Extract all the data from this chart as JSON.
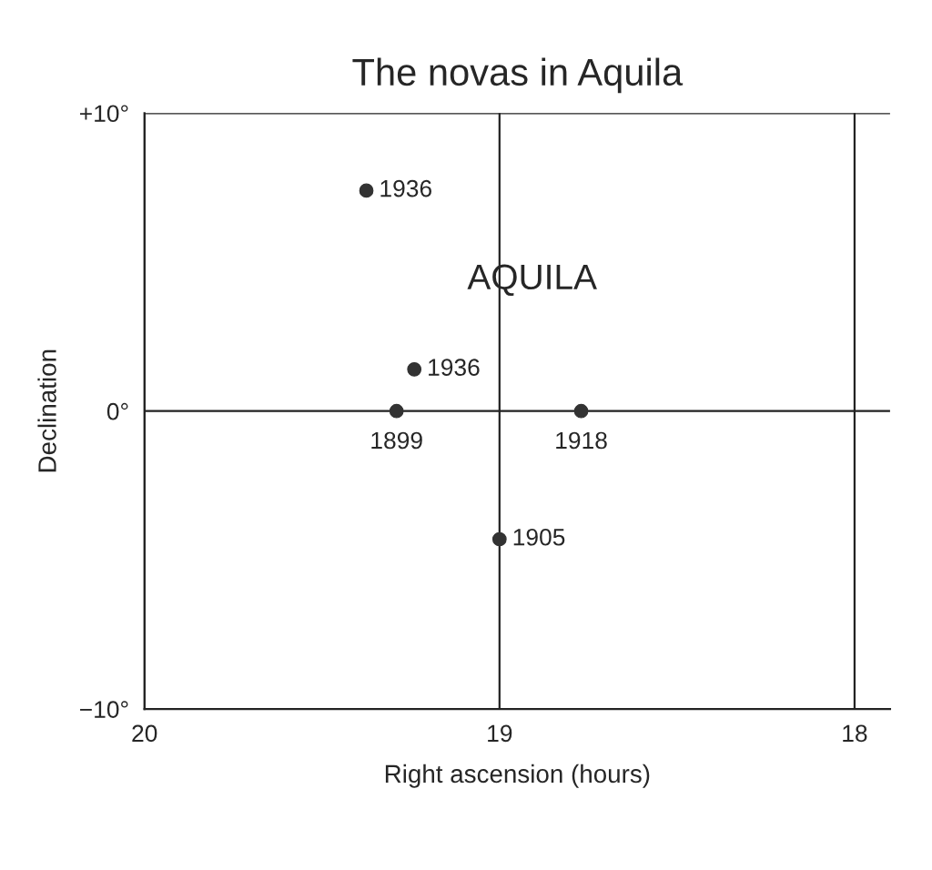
{
  "chart_data": {
    "type": "scatter",
    "title": "The novas in Aquila",
    "xlabel": "Right ascension (hours)",
    "ylabel": "Declination",
    "x": [
      19.375,
      19.24,
      19.29,
      18.77,
      19.0
    ],
    "values": [
      7.4,
      1.4,
      0,
      0,
      -4.3
    ],
    "color": "#333333",
    "marker": "circle",
    "xlim": [
      20,
      17.9
    ],
    "xticks": [
      20,
      19,
      18
    ],
    "ylim": [
      -10,
      10
    ],
    "yticks": [
      {
        "value": 10,
        "label": "+10°"
      },
      {
        "value": 0,
        "label": "0°"
      },
      {
        "value": -10,
        "label": "−10°"
      }
    ],
    "grid": true,
    "annotations": [
      "AQUILA",
      {
        "text": "1936",
        "x": 19.375,
        "y": 7.4
      },
      {
        "text": "1936",
        "x": 19.24,
        "y": 1.4
      },
      {
        "text": "1899",
        "x": 19.29,
        "y": 0
      },
      {
        "text": "1918",
        "x": 18.77,
        "y": 0
      },
      {
        "text": "1905",
        "x": 19.0,
        "y": -4.3
      }
    ]
  }
}
